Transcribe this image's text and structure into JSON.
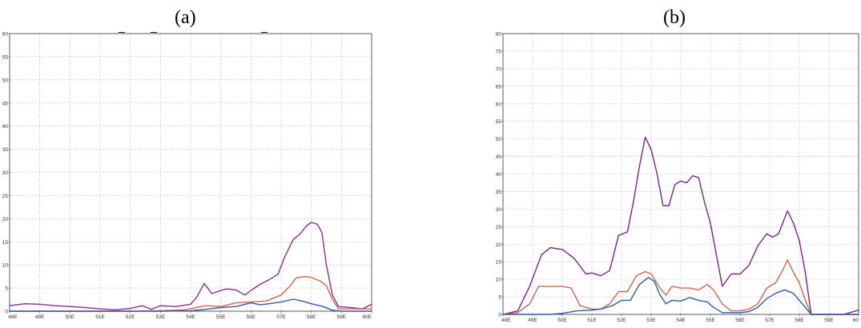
{
  "chart_data": [
    {
      "type": "line",
      "title": "(a)",
      "marks": [
        "_",
        "_",
        "_"
      ],
      "x_ticks": [
        "48E",
        "49E",
        "50E",
        "51E",
        "52E",
        "53E",
        "54E",
        "55E",
        "56E",
        "57E",
        "58E",
        "59E",
        "60E"
      ],
      "y_ticks": [
        "0",
        "5",
        "10",
        "15",
        "20",
        "25",
        "30",
        "35",
        "40",
        "45",
        "50",
        "55",
        "60"
      ],
      "xlim": [
        48,
        60
      ],
      "ylim": [
        0,
        60
      ],
      "grid": true,
      "series": [
        {
          "color": "#8b2d8b",
          "points": [
            [
              48,
              1.2
            ],
            [
              48.5,
              1.6
            ],
            [
              49,
              1.5
            ],
            [
              49.5,
              1.2
            ],
            [
              50,
              1.0
            ],
            [
              50.5,
              0.8
            ],
            [
              51,
              0.5
            ],
            [
              51.5,
              0.3
            ],
            [
              52,
              0.6
            ],
            [
              52.4,
              1.2
            ],
            [
              52.7,
              0.4
            ],
            [
              53,
              1.2
            ],
            [
              53.5,
              1.0
            ],
            [
              54,
              1.5
            ],
            [
              54.2,
              3.0
            ],
            [
              54.45,
              6.0
            ],
            [
              54.7,
              3.8
            ],
            [
              55,
              4.5
            ],
            [
              55.2,
              4.8
            ],
            [
              55.5,
              4.6
            ],
            [
              55.8,
              3.5
            ],
            [
              56,
              4.5
            ],
            [
              56.3,
              5.8
            ],
            [
              56.6,
              6.8
            ],
            [
              56.9,
              8.0
            ],
            [
              57.1,
              11.5
            ],
            [
              57.4,
              15.5
            ],
            [
              57.6,
              16.5
            ],
            [
              57.85,
              18.5
            ],
            [
              58,
              19.2
            ],
            [
              58.2,
              18.8
            ],
            [
              58.35,
              17.0
            ],
            [
              58.5,
              10.0
            ],
            [
              58.7,
              3.5
            ],
            [
              58.9,
              1.0
            ],
            [
              59.3,
              0.8
            ],
            [
              59.7,
              0.5
            ],
            [
              60,
              1.5
            ]
          ]
        },
        {
          "color": "#d9604c",
          "points": [
            [
              48,
              0
            ],
            [
              49,
              0
            ],
            [
              50,
              0
            ],
            [
              51,
              0
            ],
            [
              52,
              0
            ],
            [
              53,
              0.1
            ],
            [
              53.8,
              0.3
            ],
            [
              54.2,
              0.8
            ],
            [
              54.5,
              1.2
            ],
            [
              55,
              1.0
            ],
            [
              55.5,
              1.8
            ],
            [
              56,
              2.0
            ],
            [
              56.5,
              2.2
            ],
            [
              57,
              3.5
            ],
            [
              57.3,
              5.5
            ],
            [
              57.5,
              7.2
            ],
            [
              57.8,
              7.5
            ],
            [
              58,
              7.3
            ],
            [
              58.3,
              6.5
            ],
            [
              58.5,
              5.5
            ],
            [
              58.7,
              2.5
            ],
            [
              58.9,
              0.5
            ],
            [
              59.5,
              0.5
            ],
            [
              60,
              0.5
            ]
          ]
        },
        {
          "color": "#2b5cab",
          "points": [
            [
              48,
              0
            ],
            [
              49,
              0
            ],
            [
              50,
              0
            ],
            [
              51,
              0
            ],
            [
              52,
              0
            ],
            [
              53,
              0
            ],
            [
              54,
              0.1
            ],
            [
              54.5,
              0.4
            ],
            [
              55,
              0.8
            ],
            [
              55.5,
              1.0
            ],
            [
              56,
              1.8
            ],
            [
              56.3,
              1.4
            ],
            [
              56.6,
              1.6
            ],
            [
              57,
              2.0
            ],
            [
              57.4,
              2.6
            ],
            [
              57.7,
              2.2
            ],
            [
              58,
              1.6
            ],
            [
              58.4,
              1.0
            ],
            [
              58.7,
              0.2
            ],
            [
              59,
              0
            ],
            [
              60,
              0
            ]
          ]
        }
      ]
    },
    {
      "type": "line",
      "title": "(b)",
      "x_ticks": [
        "48E",
        "49E",
        "50E",
        "51E",
        "52E",
        "53E",
        "54E",
        "55E",
        "56E",
        "57E",
        "58E",
        "59E",
        "60"
      ],
      "y_ticks": [
        "0",
        "5",
        "10",
        "15",
        "20",
        "25",
        "30",
        "35",
        "40",
        "45",
        "50",
        "55",
        "60",
        "65",
        "70",
        "75",
        "80"
      ],
      "xlim": [
        48,
        60
      ],
      "ylim": [
        0,
        80
      ],
      "grid": true,
      "series": [
        {
          "color": "#7a2388",
          "points": [
            [
              48,
              0
            ],
            [
              48.5,
              1.0
            ],
            [
              48.9,
              8.0
            ],
            [
              49.3,
              17.0
            ],
            [
              49.6,
              19.0
            ],
            [
              50,
              18.5
            ],
            [
              50.4,
              16.0
            ],
            [
              50.8,
              11.5
            ],
            [
              51,
              11.8
            ],
            [
              51.3,
              11.0
            ],
            [
              51.6,
              12.5
            ],
            [
              51.9,
              22.5
            ],
            [
              52.2,
              23.5
            ],
            [
              52.4,
              32.0
            ],
            [
              52.6,
              42.0
            ],
            [
              52.8,
              50.5
            ],
            [
              53.0,
              47.0
            ],
            [
              53.2,
              40.0
            ],
            [
              53.4,
              31.0
            ],
            [
              53.6,
              31.0
            ],
            [
              53.8,
              37.0
            ],
            [
              54.0,
              38.0
            ],
            [
              54.2,
              37.5
            ],
            [
              54.4,
              39.5
            ],
            [
              54.6,
              39.0
            ],
            [
              54.8,
              32.0
            ],
            [
              55.0,
              26.0
            ],
            [
              55.2,
              17.0
            ],
            [
              55.4,
              8.0
            ],
            [
              55.7,
              11.5
            ],
            [
              56.0,
              11.5
            ],
            [
              56.3,
              14.0
            ],
            [
              56.6,
              19.5
            ],
            [
              56.9,
              23.0
            ],
            [
              57.1,
              22.0
            ],
            [
              57.3,
              23.0
            ],
            [
              57.6,
              29.5
            ],
            [
              57.8,
              26.0
            ],
            [
              58.0,
              21.0
            ],
            [
              58.2,
              12.0
            ],
            [
              58.4,
              0
            ],
            [
              59,
              0
            ],
            [
              59.5,
              0
            ],
            [
              60,
              1.2
            ]
          ]
        },
        {
          "color": "#d9604c",
          "points": [
            [
              48,
              0
            ],
            [
              48.5,
              0.5
            ],
            [
              48.9,
              3.0
            ],
            [
              49.2,
              8.0
            ],
            [
              49.6,
              8.0
            ],
            [
              50,
              8.0
            ],
            [
              50.3,
              7.5
            ],
            [
              50.6,
              2.5
            ],
            [
              51,
              1.5
            ],
            [
              51.3,
              1.5
            ],
            [
              51.6,
              3.0
            ],
            [
              51.9,
              6.5
            ],
            [
              52.2,
              6.5
            ],
            [
              52.5,
              11.0
            ],
            [
              52.8,
              12.2
            ],
            [
              53.0,
              11.5
            ],
            [
              53.3,
              7.5
            ],
            [
              53.5,
              5.5
            ],
            [
              53.7,
              8.0
            ],
            [
              54.0,
              7.5
            ],
            [
              54.3,
              7.5
            ],
            [
              54.6,
              7.0
            ],
            [
              54.9,
              8.5
            ],
            [
              55.1,
              7.0
            ],
            [
              55.4,
              3.0
            ],
            [
              55.7,
              1.0
            ],
            [
              56.0,
              1.0
            ],
            [
              56.3,
              1.5
            ],
            [
              56.6,
              3.0
            ],
            [
              56.9,
              7.5
            ],
            [
              57.2,
              9.0
            ],
            [
              57.4,
              12.0
            ],
            [
              57.6,
              15.5
            ],
            [
              57.8,
              12.0
            ],
            [
              58.0,
              9.0
            ],
            [
              58.2,
              4.0
            ],
            [
              58.4,
              0
            ],
            [
              59,
              0
            ],
            [
              60,
              0
            ]
          ]
        },
        {
          "color": "#2b5cab",
          "points": [
            [
              48,
              0
            ],
            [
              49,
              0
            ],
            [
              49.6,
              0
            ],
            [
              50,
              0.3
            ],
            [
              50.5,
              1.0
            ],
            [
              51,
              1.2
            ],
            [
              51.3,
              1.5
            ],
            [
              51.7,
              2.5
            ],
            [
              52.0,
              4.0
            ],
            [
              52.3,
              4.0
            ],
            [
              52.6,
              8.5
            ],
            [
              52.9,
              10.5
            ],
            [
              53.1,
              9.5
            ],
            [
              53.3,
              5.5
            ],
            [
              53.5,
              3.0
            ],
            [
              53.7,
              4.0
            ],
            [
              54.0,
              3.8
            ],
            [
              54.3,
              4.8
            ],
            [
              54.6,
              4.0
            ],
            [
              54.9,
              3.5
            ],
            [
              55.1,
              2.0
            ],
            [
              55.4,
              0.5
            ],
            [
              55.7,
              0.5
            ],
            [
              56.0,
              0.5
            ],
            [
              56.3,
              0.8
            ],
            [
              56.6,
              2.0
            ],
            [
              56.9,
              4.5
            ],
            [
              57.2,
              6.0
            ],
            [
              57.5,
              7.0
            ],
            [
              57.8,
              6.0
            ],
            [
              58.0,
              4.0
            ],
            [
              58.2,
              2.0
            ],
            [
              58.4,
              0
            ],
            [
              59,
              0
            ],
            [
              60,
              0
            ]
          ]
        }
      ]
    }
  ]
}
